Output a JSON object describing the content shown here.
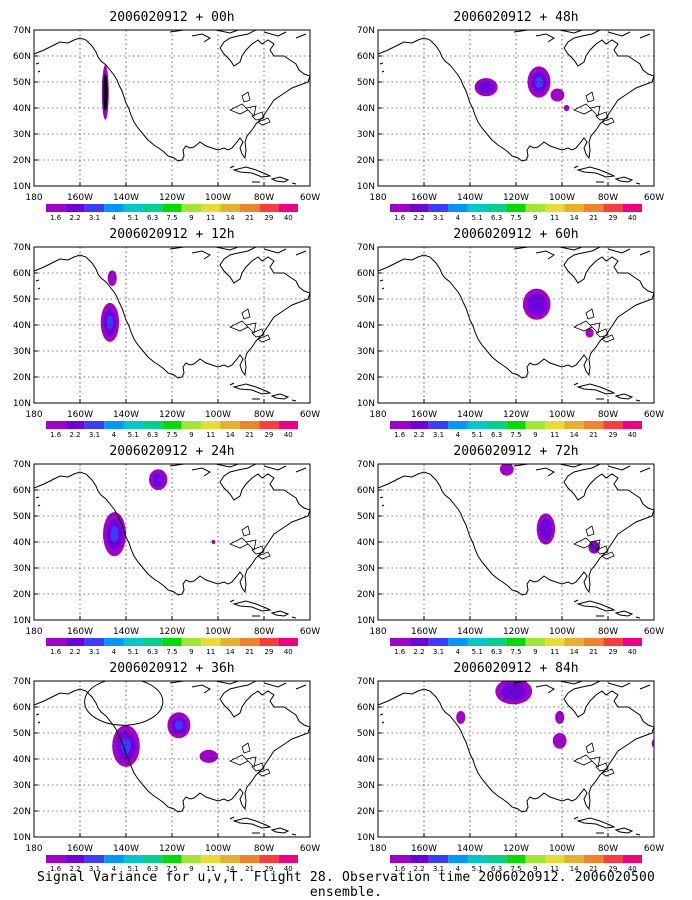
{
  "caption": "Signal Variance for u,v,T. Flight 28. Observation time 2006020912. 2006020500 ensemble.",
  "x_ticks": [
    "180",
    "160W",
    "140W",
    "120W",
    "100W",
    "80W",
    "60W"
  ],
  "y_ticks": [
    "10N",
    "20N",
    "30N",
    "40N",
    "50N",
    "60N",
    "70N"
  ],
  "colorbar": {
    "labels": [
      "1.6",
      "2.2",
      "3.1",
      "4",
      "5.1",
      "6.3",
      "7.5",
      "9",
      "11",
      "14",
      "21",
      "29",
      "40"
    ],
    "colors": [
      "#a000c8",
      "#6e00dc",
      "#3c3cff",
      "#0096ff",
      "#00c8c8",
      "#00d28c",
      "#00dc00",
      "#a0e632",
      "#e6dc32",
      "#e6af2d",
      "#f08228",
      "#fa3c3c",
      "#f00082"
    ]
  },
  "panels": [
    {
      "title": "2006020912 + 00h",
      "blobs": [
        {
          "lon": -149,
          "lat": 46,
          "rlon": 1.5,
          "rlat": 10.5,
          "levels": [
            0,
            13
          ]
        }
      ]
    },
    {
      "title": "2006020912 + 48h",
      "blobs": [
        {
          "lon": -133,
          "lat": 48,
          "rlon": 5,
          "rlat": 3.5,
          "levels": [
            0,
            1
          ]
        },
        {
          "lon": -110,
          "lat": 50,
          "rlon": 5,
          "rlat": 6,
          "levels": [
            0,
            1,
            2
          ]
        },
        {
          "lon": -102,
          "lat": 45,
          "rlon": 3,
          "rlat": 2.5,
          "levels": [
            0
          ]
        },
        {
          "lon": -98,
          "lat": 40,
          "rlon": 1.2,
          "rlat": 1.2,
          "levels": [
            0
          ]
        }
      ]
    },
    {
      "title": "2006020912 + 12h",
      "blobs": [
        {
          "lon": -146,
          "lat": 58,
          "rlon": 2,
          "rlat": 3,
          "levels": [
            0
          ]
        },
        {
          "lon": -147,
          "lat": 41,
          "rlon": 4,
          "rlat": 7.5,
          "levels": [
            0,
            1,
            2
          ]
        }
      ]
    },
    {
      "title": "2006020912 + 60h",
      "blobs": [
        {
          "lon": -111,
          "lat": 48,
          "rlon": 6,
          "rlat": 6,
          "levels": [
            0,
            1
          ]
        },
        {
          "lon": -88,
          "lat": 37,
          "rlon": 1.8,
          "rlat": 1.8,
          "levels": [
            0
          ]
        }
      ]
    },
    {
      "title": "2006020912 + 24h",
      "blobs": [
        {
          "lon": -126,
          "lat": 64,
          "rlon": 4,
          "rlat": 4,
          "levels": [
            0,
            1
          ]
        },
        {
          "lon": -145,
          "lat": 43,
          "rlon": 5,
          "rlat": 8.5,
          "levels": [
            0,
            1,
            2
          ]
        },
        {
          "lon": -102,
          "lat": 40,
          "rlon": 0.8,
          "rlat": 0.8,
          "levels": [
            0
          ]
        }
      ]
    },
    {
      "title": "2006020912 + 72h",
      "blobs": [
        {
          "lon": -124,
          "lat": 68,
          "rlon": 3,
          "rlat": 2.5,
          "levels": [
            0
          ]
        },
        {
          "lon": -107,
          "lat": 45,
          "rlon": 4,
          "rlat": 6,
          "levels": [
            0,
            1
          ]
        },
        {
          "lon": -86,
          "lat": 38,
          "rlon": 2.5,
          "rlat": 2.5,
          "levels": [
            0,
            1
          ]
        }
      ]
    },
    {
      "title": "2006020912 + 36h",
      "blobs": [
        {
          "lon": -117,
          "lat": 53,
          "rlon": 5,
          "rlat": 5,
          "levels": [
            0,
            1,
            2
          ]
        },
        {
          "lon": -104,
          "lat": 41,
          "rlon": 4,
          "rlat": 2.5,
          "levels": [
            0
          ]
        },
        {
          "lon": -140,
          "lat": 45,
          "rlon": 6,
          "rlat": 8,
          "levels": [
            0,
            1,
            2
          ]
        }
      ],
      "circle": {
        "lon": -141,
        "lat": 62,
        "rlon": 17,
        "rlat": 9
      }
    },
    {
      "title": "2006020912 + 84h",
      "blobs": [
        {
          "lon": -121,
          "lat": 66,
          "rlon": 8,
          "rlat": 5,
          "levels": [
            0,
            1
          ]
        },
        {
          "lon": -144,
          "lat": 56,
          "rlon": 2,
          "rlat": 2.5,
          "levels": [
            0
          ]
        },
        {
          "lon": -101,
          "lat": 56,
          "rlon": 2,
          "rlat": 2.5,
          "levels": [
            0
          ]
        },
        {
          "lon": -101,
          "lat": 47,
          "rlon": 3,
          "rlat": 3,
          "levels": [
            0
          ]
        },
        {
          "lon": -60,
          "lat": 46,
          "rlon": 1,
          "rlat": 1.5,
          "levels": [
            0
          ]
        }
      ]
    }
  ]
}
